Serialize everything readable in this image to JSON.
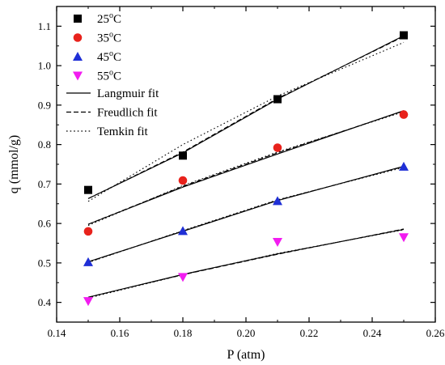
{
  "chart_data": {
    "type": "scatter",
    "xlabel": "P (atm)",
    "ylabel": "q (mmol/g)",
    "xlim": [
      0.14,
      0.26
    ],
    "ylim": [
      0.35,
      1.15
    ],
    "xticks": [
      "0.14",
      "0.16",
      "0.18",
      "0.20",
      "0.22",
      "0.24",
      "0.26"
    ],
    "yticks": [
      "0.4",
      "0.5",
      "0.6",
      "0.7",
      "0.8",
      "0.9",
      "1.0",
      "1.1"
    ],
    "grid": false,
    "legend_position": "top-left",
    "series": [
      {
        "name": "25",
        "name_sup": "o",
        "name_suffix": "C",
        "marker": "square",
        "color": "#000000",
        "x": [
          0.15,
          0.18,
          0.21,
          0.25
        ],
        "y": [
          0.685,
          0.772,
          0.915,
          1.077
        ],
        "fits": {
          "langmuir": [
            0.663,
            0.779,
            0.915,
            1.076
          ],
          "freundlich": [
            0.663,
            0.781,
            0.917,
            1.074
          ],
          "temkin": [
            0.656,
            0.8,
            0.923,
            1.059
          ]
        }
      },
      {
        "name": "35",
        "name_sup": "o",
        "name_suffix": "C",
        "marker": "circle",
        "color": "#e8221c",
        "x": [
          0.15,
          0.18,
          0.21,
          0.25
        ],
        "y": [
          0.58,
          0.709,
          0.792,
          0.876
        ],
        "fits": {
          "langmuir": [
            0.598,
            0.692,
            0.776,
            0.886
          ],
          "freundlich": [
            0.598,
            0.694,
            0.779,
            0.885
          ],
          "temkin": [
            0.595,
            0.696,
            0.781,
            0.883
          ]
        }
      },
      {
        "name": "45",
        "name_sup": "o",
        "name_suffix": "C",
        "marker": "triangle-up",
        "color": "#1f2fd6",
        "x": [
          0.15,
          0.18,
          0.21,
          0.25
        ],
        "y": [
          0.502,
          0.581,
          0.657,
          0.744
        ],
        "fits": {
          "langmuir": [
            0.503,
            0.58,
            0.658,
            0.745
          ],
          "freundlich": [
            0.502,
            0.581,
            0.659,
            0.744
          ],
          "temkin": [
            0.501,
            0.582,
            0.66,
            0.742
          ]
        }
      },
      {
        "name": "55",
        "name_sup": "o",
        "name_suffix": "C",
        "marker": "triangle-down",
        "color": "#f21cf0",
        "x": [
          0.15,
          0.18,
          0.21,
          0.25
        ],
        "y": [
          0.403,
          0.464,
          0.553,
          0.565
        ],
        "fits": {
          "langmuir": [
            0.413,
            0.471,
            0.523,
            0.585
          ],
          "freundlich": [
            0.413,
            0.47,
            0.522,
            0.586
          ],
          "temkin": [
            0.411,
            0.47,
            0.524,
            0.584
          ]
        }
      }
    ],
    "fit_legend": [
      {
        "key": "langmuir",
        "name": "Langmuir fit",
        "dash": "solid"
      },
      {
        "key": "freundlich",
        "name": "Freudlich fit",
        "dash": "dashed"
      },
      {
        "key": "temkin",
        "name": "Temkin fit",
        "dash": "dotted"
      }
    ]
  }
}
